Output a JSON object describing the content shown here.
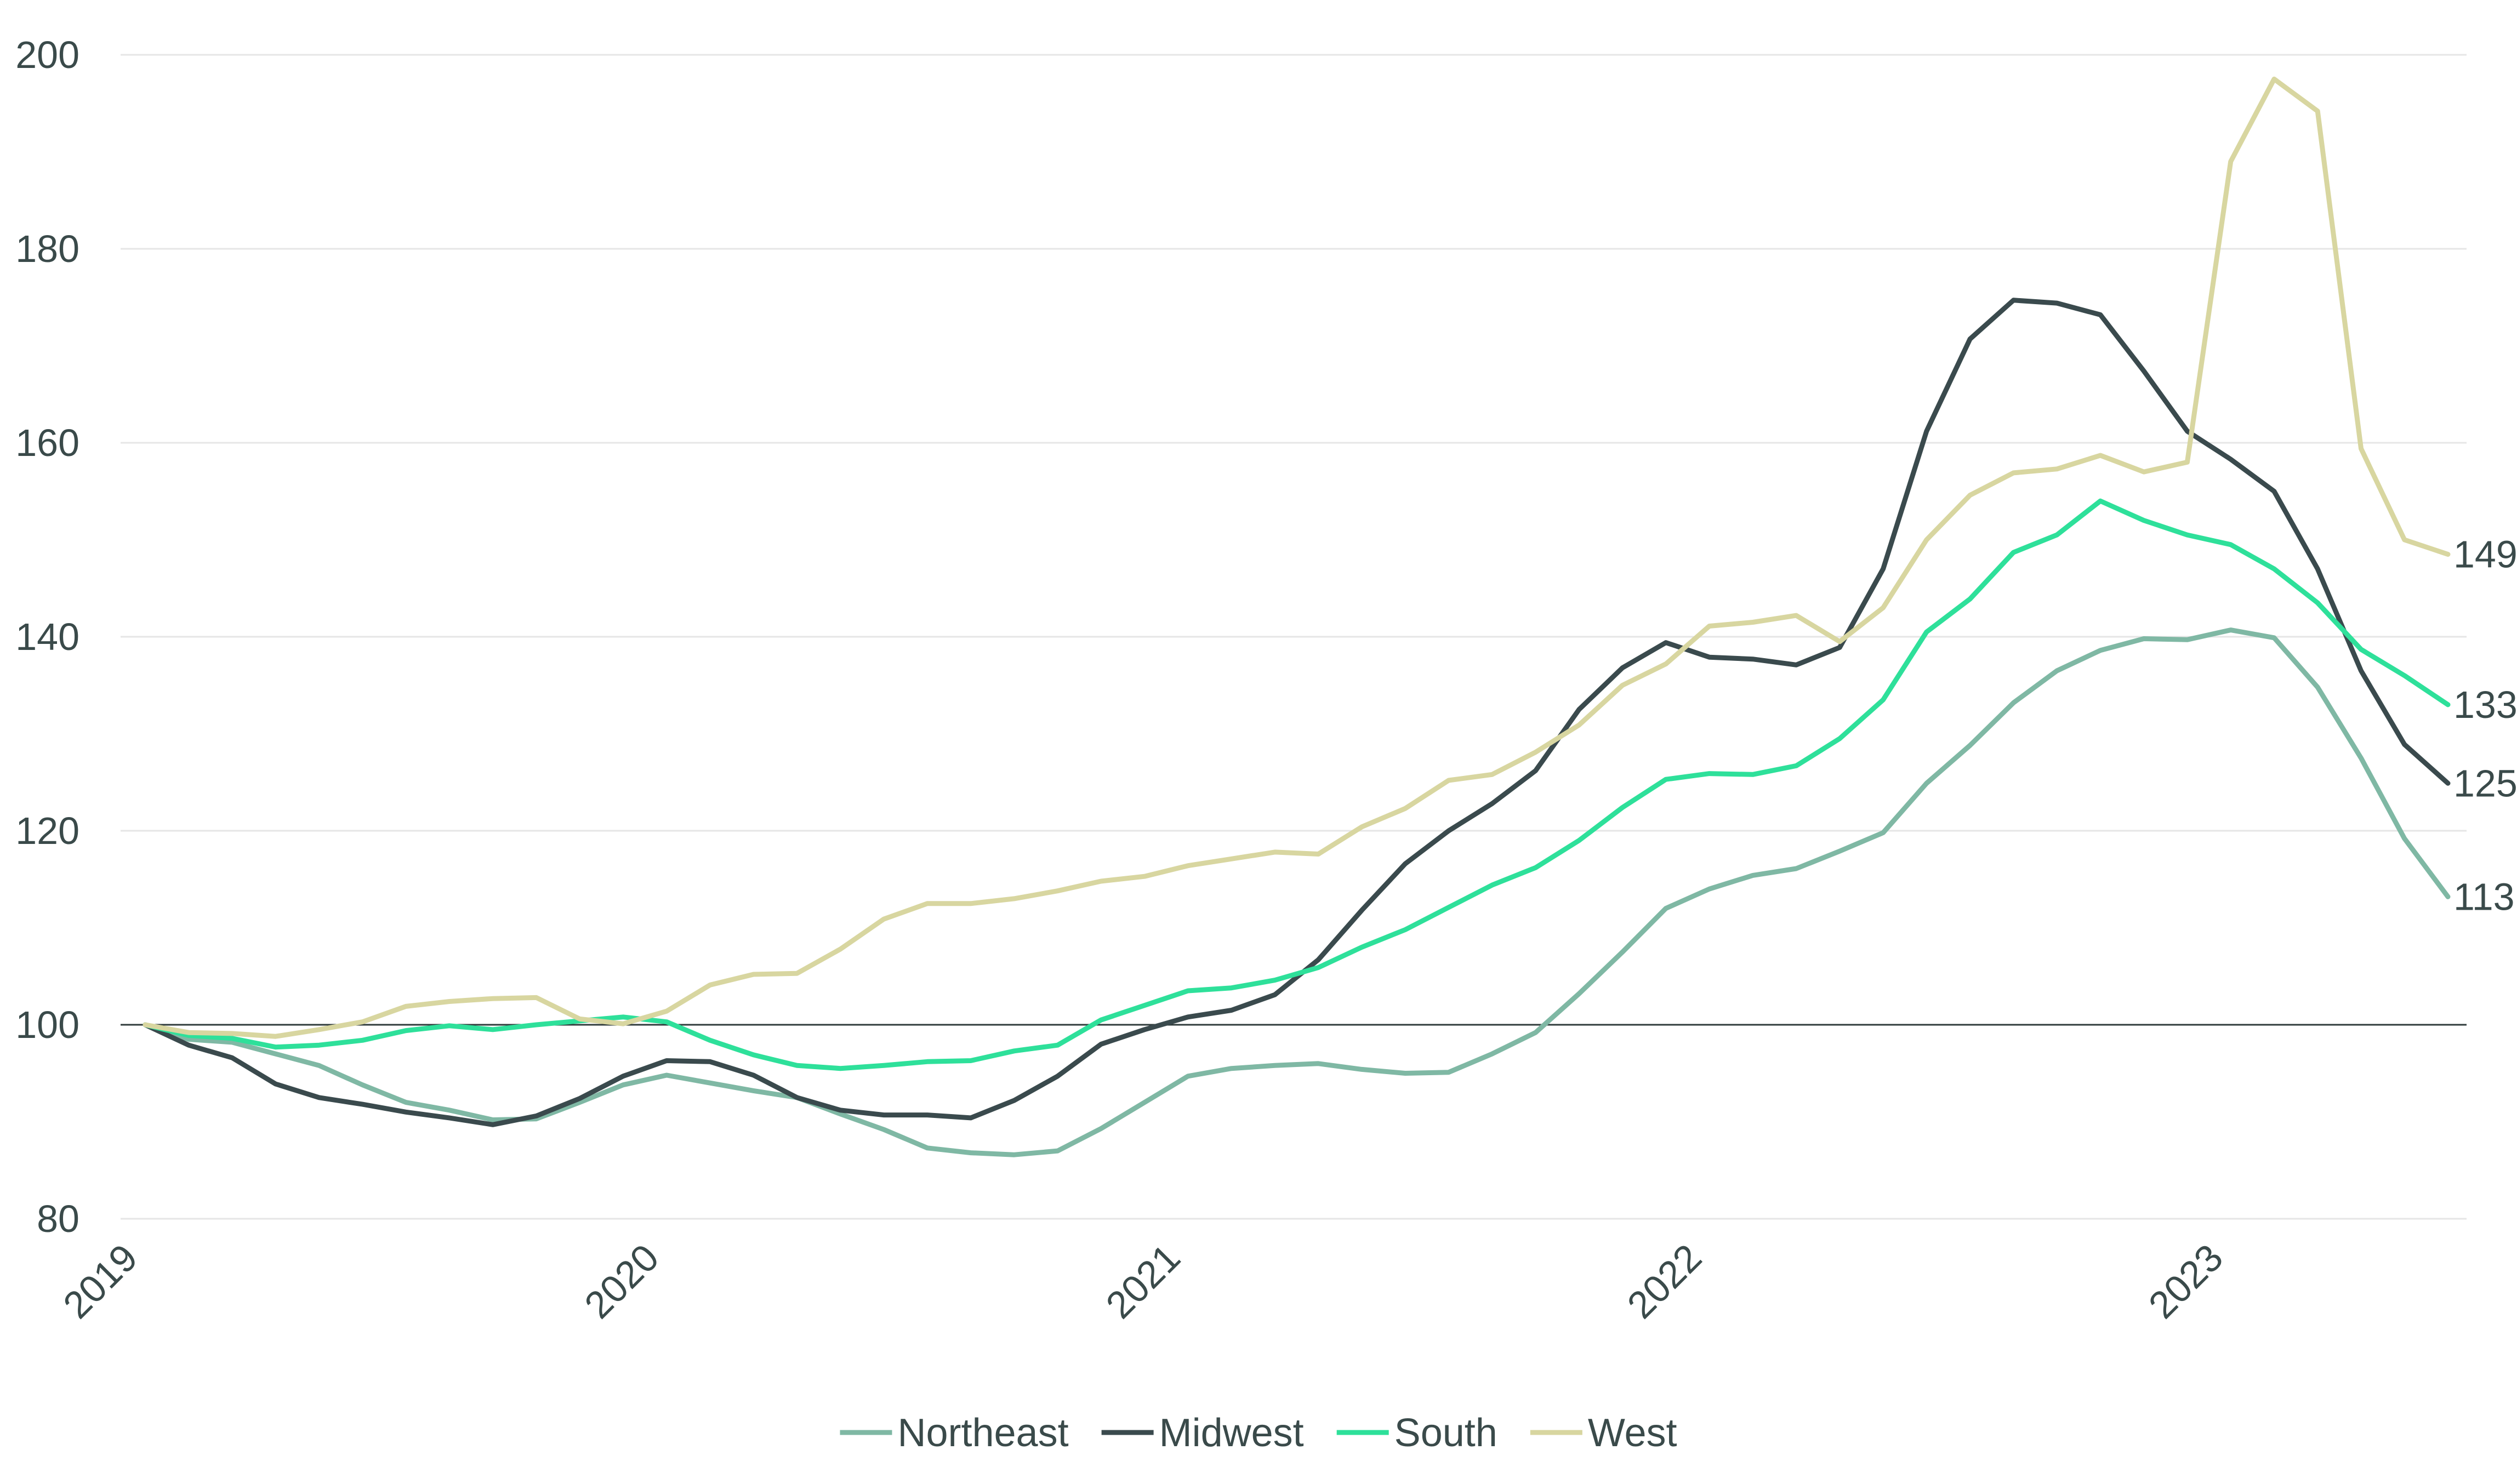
{
  "chart_data": {
    "type": "line",
    "title": "",
    "xlabel": "",
    "ylabel": "",
    "ylim": [
      80,
      200
    ],
    "yticks": [
      80,
      100,
      120,
      140,
      160,
      180,
      200
    ],
    "ytick_labels": [
      "80",
      "100",
      "120",
      "140",
      "160",
      "180",
      "200"
    ],
    "xlim": [
      0,
      54
    ],
    "xticks": [
      0,
      12,
      24,
      36,
      48
    ],
    "xtick_labels": [
      "2019",
      "2020",
      "2021",
      "2022",
      "2023"
    ],
    "reference_line": 100,
    "grid": true,
    "legend_position": "bottom-center",
    "colors": {
      "Northeast": "#7fb8a4",
      "Midwest": "#3a4a4d",
      "South": "#2ee09a",
      "West": "#d8d6a0"
    },
    "end_labels": {
      "Northeast": "113",
      "Midwest": "125",
      "South": "133",
      "West": "149"
    },
    "series": [
      {
        "name": "Northeast",
        "values": [
          100,
          98.5,
          98.2,
          97.0,
          95.8,
          93.8,
          92.0,
          91.2,
          90.2,
          90.3,
          92.0,
          93.8,
          94.8,
          94.0,
          93.2,
          92.5,
          90.8,
          89.2,
          87.3,
          86.8,
          86.6,
          87.0,
          89.3,
          92.0,
          94.7,
          95.5,
          95.8,
          96.0,
          95.4,
          95.0,
          95.1,
          97.0,
          99.2,
          103.2,
          107.5,
          112.0,
          114.0,
          115.4,
          116.1,
          117.9,
          119.8,
          124.9,
          128.8,
          133.2,
          136.5,
          138.6,
          139.8,
          139.7,
          140.7,
          139.9,
          134.8,
          127.5,
          119.2,
          113.2
        ]
      },
      {
        "name": "Midwest",
        "values": [
          100,
          97.9,
          96.6,
          93.9,
          92.5,
          91.8,
          91.0,
          90.4,
          89.7,
          90.6,
          92.4,
          94.7,
          96.3,
          96.2,
          94.8,
          92.5,
          91.2,
          90.7,
          90.7,
          90.4,
          92.2,
          94.7,
          98.0,
          99.5,
          100.8,
          101.5,
          103.1,
          106.7,
          111.8,
          116.6,
          120.0,
          122.8,
          126.2,
          132.5,
          136.8,
          139.4,
          137.9,
          137.7,
          137.1,
          138.9,
          147.0,
          161.2,
          170.7,
          174.7,
          174.4,
          173.2,
          167.4,
          161.2,
          158.3,
          155.0,
          147.0,
          136.5,
          128.9,
          124.9
        ]
      },
      {
        "name": "South",
        "values": [
          100,
          98.9,
          98.6,
          97.7,
          97.9,
          98.4,
          99.4,
          99.9,
          99.5,
          100.0,
          100.4,
          100.8,
          100.3,
          98.4,
          96.9,
          95.8,
          95.5,
          95.8,
          96.2,
          96.3,
          97.3,
          97.9,
          100.5,
          102.0,
          103.5,
          103.8,
          104.6,
          105.9,
          108.0,
          109.8,
          112.1,
          114.4,
          116.2,
          119.0,
          122.4,
          125.3,
          125.9,
          125.8,
          126.7,
          129.5,
          133.5,
          140.5,
          143.9,
          148.7,
          150.5,
          154.0,
          152.0,
          150.5,
          149.5,
          147.0,
          143.5,
          138.7,
          136.0,
          133.0
        ]
      },
      {
        "name": "West",
        "values": [
          100,
          99.2,
          99.1,
          98.8,
          99.5,
          100.3,
          101.9,
          102.4,
          102.7,
          102.8,
          100.6,
          100.1,
          101.4,
          104.1,
          105.2,
          105.3,
          107.8,
          110.9,
          112.5,
          112.5,
          113.0,
          113.8,
          114.8,
          115.3,
          116.4,
          117.1,
          117.8,
          117.6,
          120.4,
          122.3,
          125.2,
          125.8,
          128.1,
          130.9,
          135.0,
          137.2,
          141.1,
          141.5,
          142.2,
          139.5,
          143.0,
          150.0,
          154.6,
          156.9,
          157.3,
          158.7,
          157.0,
          158.0,
          189.0,
          197.5,
          194.2,
          159.4,
          150.0,
          148.5
        ]
      }
    ]
  }
}
